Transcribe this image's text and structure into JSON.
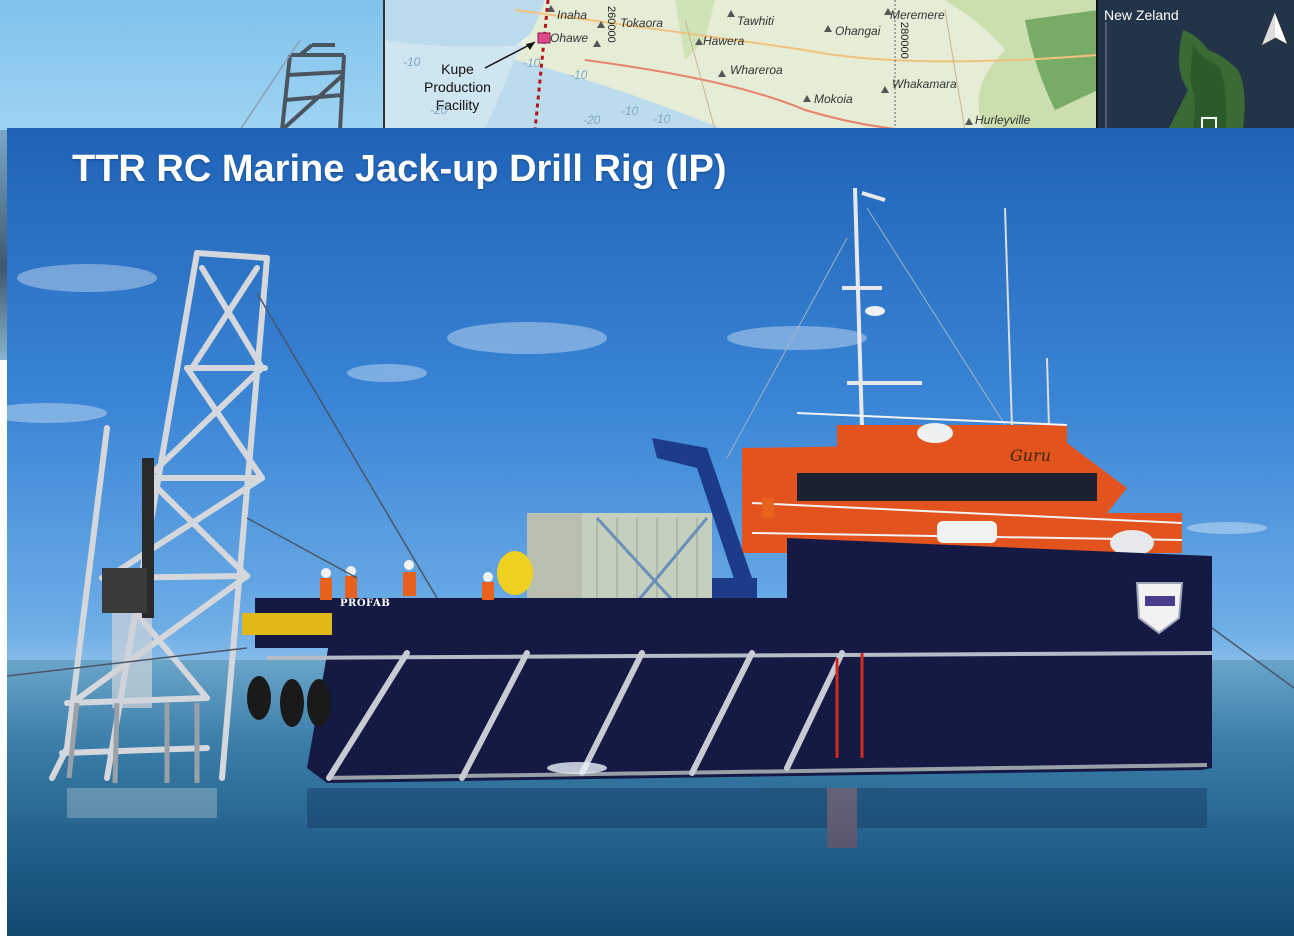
{
  "slide": {
    "title": "TTR RC Marine Jack-up Drill Rig (IP)"
  },
  "map": {
    "places": [
      {
        "name": "Inaha"
      },
      {
        "name": "Tokaora"
      },
      {
        "name": "Tawhiti"
      },
      {
        "name": "Meremere"
      },
      {
        "name": "Ohangai"
      },
      {
        "name": "Ohawe"
      },
      {
        "name": "Hawera"
      },
      {
        "name": "Whareroa"
      },
      {
        "name": "Whakamara"
      },
      {
        "name": "Mokoia"
      },
      {
        "name": "Hurleyville"
      }
    ],
    "callout": [
      "Kupe",
      "Production",
      "Facility"
    ],
    "grid_labels": [
      "260000",
      "280000"
    ],
    "depth_labels": [
      "-10",
      "-10",
      "-10",
      "-10",
      "-20",
      "-10",
      "-20"
    ],
    "inset_title": "New Zeland",
    "north_arrow_icon": "north-arrow-icon"
  },
  "photo": {
    "vessel_name": "Guru",
    "deck_brand": "PROFAB",
    "colors": {
      "hull": "#151a45",
      "superstructure": "#e2531e",
      "rig_frame": "#d4d7dc",
      "sky": "#3b86d6",
      "sea": "#1f5d87"
    }
  }
}
